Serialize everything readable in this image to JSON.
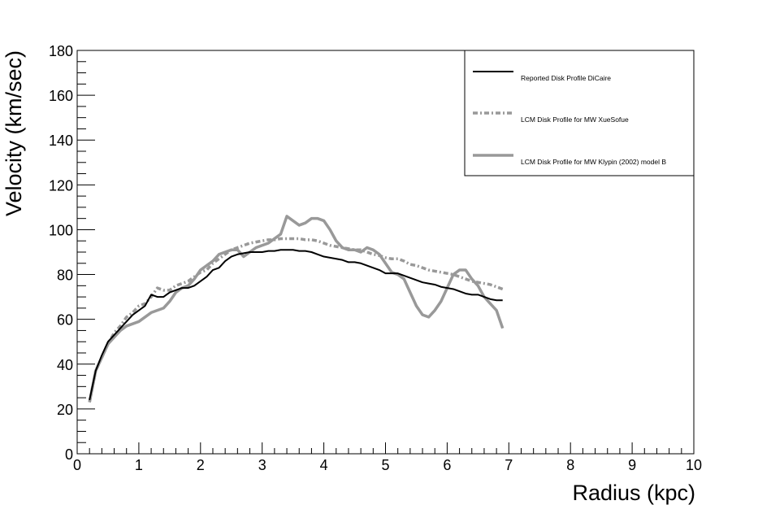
{
  "chart_data": {
    "type": "line",
    "title": "",
    "xlabel": "Radius (kpc)",
    "ylabel": "Velocity (km/sec)",
    "xlim": [
      0,
      10
    ],
    "ylim": [
      0,
      180
    ],
    "x_ticks": [
      0,
      1,
      2,
      3,
      4,
      5,
      6,
      7,
      8,
      9,
      10
    ],
    "y_ticks": [
      0,
      20,
      40,
      60,
      80,
      100,
      120,
      140,
      160,
      180
    ],
    "grid": false,
    "legend_position": "top-right",
    "series": [
      {
        "name": "Reported Disk Profile DiCaire",
        "color": "#000000",
        "style": "solid",
        "x": [
          0.2,
          0.3,
          0.4,
          0.5,
          0.6,
          0.7,
          0.8,
          0.9,
          1.0,
          1.1,
          1.2,
          1.3,
          1.4,
          1.5,
          1.6,
          1.7,
          1.8,
          1.9,
          2.0,
          2.1,
          2.2,
          2.3,
          2.4,
          2.5,
          2.6,
          2.7,
          2.8,
          2.9,
          3.0,
          3.1,
          3.2,
          3.3,
          3.4,
          3.5,
          3.6,
          3.7,
          3.8,
          3.9,
          4.0,
          4.1,
          4.2,
          4.3,
          4.4,
          4.5,
          4.6,
          4.7,
          4.8,
          4.9,
          5.0,
          5.1,
          5.2,
          5.3,
          5.4,
          5.5,
          5.6,
          5.7,
          5.8,
          5.9,
          6.0,
          6.1,
          6.2,
          6.3,
          6.4,
          6.5,
          6.6,
          6.7,
          6.8,
          6.9
        ],
        "y": [
          24,
          37,
          44,
          50,
          53,
          56,
          59,
          62,
          64,
          66,
          71,
          70,
          70,
          72,
          73,
          74,
          74,
          75,
          77,
          79,
          82,
          83,
          86,
          88,
          89,
          89.5,
          90,
          90,
          90,
          90.5,
          90.5,
          91,
          91,
          91,
          90.5,
          90.5,
          90,
          89,
          88,
          87.5,
          87,
          86.5,
          85.5,
          85.5,
          85,
          84,
          83,
          82,
          80.5,
          80.5,
          80.5,
          79.5,
          78.5,
          77.5,
          76.5,
          76,
          75.5,
          74.5,
          74,
          73.5,
          72.5,
          71.5,
          71,
          71,
          70,
          69,
          68.5,
          68.5
        ]
      },
      {
        "name": "LCM Disk Profile for MW XueSofue",
        "color": "#999999",
        "style": "dash-dot",
        "x": [
          0.2,
          0.3,
          0.4,
          0.5,
          0.6,
          0.7,
          0.8,
          0.9,
          1.0,
          1.1,
          1.2,
          1.3,
          1.4,
          1.5,
          1.6,
          1.7,
          1.8,
          1.9,
          2.0,
          2.1,
          2.2,
          2.3,
          2.4,
          2.5,
          2.6,
          2.7,
          2.8,
          2.9,
          3.0,
          3.1,
          3.2,
          3.3,
          3.4,
          3.5,
          3.6,
          3.7,
          3.8,
          3.9,
          4.0,
          4.1,
          4.2,
          4.3,
          4.4,
          4.5,
          4.6,
          4.7,
          4.8,
          4.9,
          5.0,
          5.1,
          5.2,
          5.3,
          5.4,
          5.5,
          5.6,
          5.7,
          5.8,
          5.9,
          6.0,
          6.1,
          6.2,
          6.3,
          6.4,
          6.5,
          6.6,
          6.7,
          6.8,
          6.9
        ],
        "y": [
          23,
          37,
          43,
          49,
          54,
          57,
          61,
          63,
          66,
          67,
          70,
          74,
          73,
          73,
          75,
          76,
          77,
          79,
          81,
          82,
          85,
          87,
          89,
          91,
          92,
          93,
          94,
          94.5,
          95,
          95.5,
          95.5,
          96,
          96,
          96,
          96,
          95.5,
          95.5,
          95,
          94,
          93,
          92.5,
          92,
          91.5,
          91,
          91,
          90,
          89,
          88.5,
          87.5,
          87,
          87,
          86,
          84.5,
          84,
          83,
          82,
          81.5,
          81,
          80.5,
          80,
          79,
          78,
          77,
          76.5,
          76,
          75.5,
          74.5,
          73.5
        ]
      },
      {
        "name": "LCM Disk Profile for MW Klypin (2002) model B",
        "color": "#999999",
        "style": "solid-thick",
        "x": [
          0.2,
          0.3,
          0.4,
          0.5,
          0.6,
          0.7,
          0.8,
          0.9,
          1.0,
          1.1,
          1.2,
          1.3,
          1.4,
          1.5,
          1.6,
          1.7,
          1.8,
          1.9,
          2.0,
          2.1,
          2.2,
          2.3,
          2.4,
          2.5,
          2.6,
          2.7,
          2.8,
          2.9,
          3.0,
          3.1,
          3.2,
          3.3,
          3.4,
          3.5,
          3.6,
          3.7,
          3.8,
          3.9,
          4.0,
          4.1,
          4.2,
          4.3,
          4.4,
          4.5,
          4.6,
          4.7,
          4.8,
          4.9,
          5.0,
          5.1,
          5.2,
          5.3,
          5.4,
          5.5,
          5.6,
          5.7,
          5.8,
          5.9,
          6.0,
          6.1,
          6.2,
          6.3,
          6.4,
          6.5,
          6.6,
          6.7,
          6.8,
          6.9
        ],
        "y": [
          23,
          37,
          43,
          49,
          52,
          55,
          57,
          58,
          59,
          61,
          63,
          64,
          65,
          68,
          72,
          74,
          75,
          78,
          82,
          84,
          86,
          89,
          90,
          91,
          91,
          88,
          90,
          92,
          93,
          94,
          96,
          98,
          106,
          104,
          102,
          103,
          105,
          105,
          104,
          100,
          95,
          92,
          91,
          91,
          90,
          92,
          91,
          89,
          85,
          81,
          80,
          78,
          72,
          66,
          62,
          61,
          64,
          68,
          74,
          80,
          82,
          82,
          78,
          75,
          70,
          67,
          64,
          56
        ]
      }
    ]
  }
}
